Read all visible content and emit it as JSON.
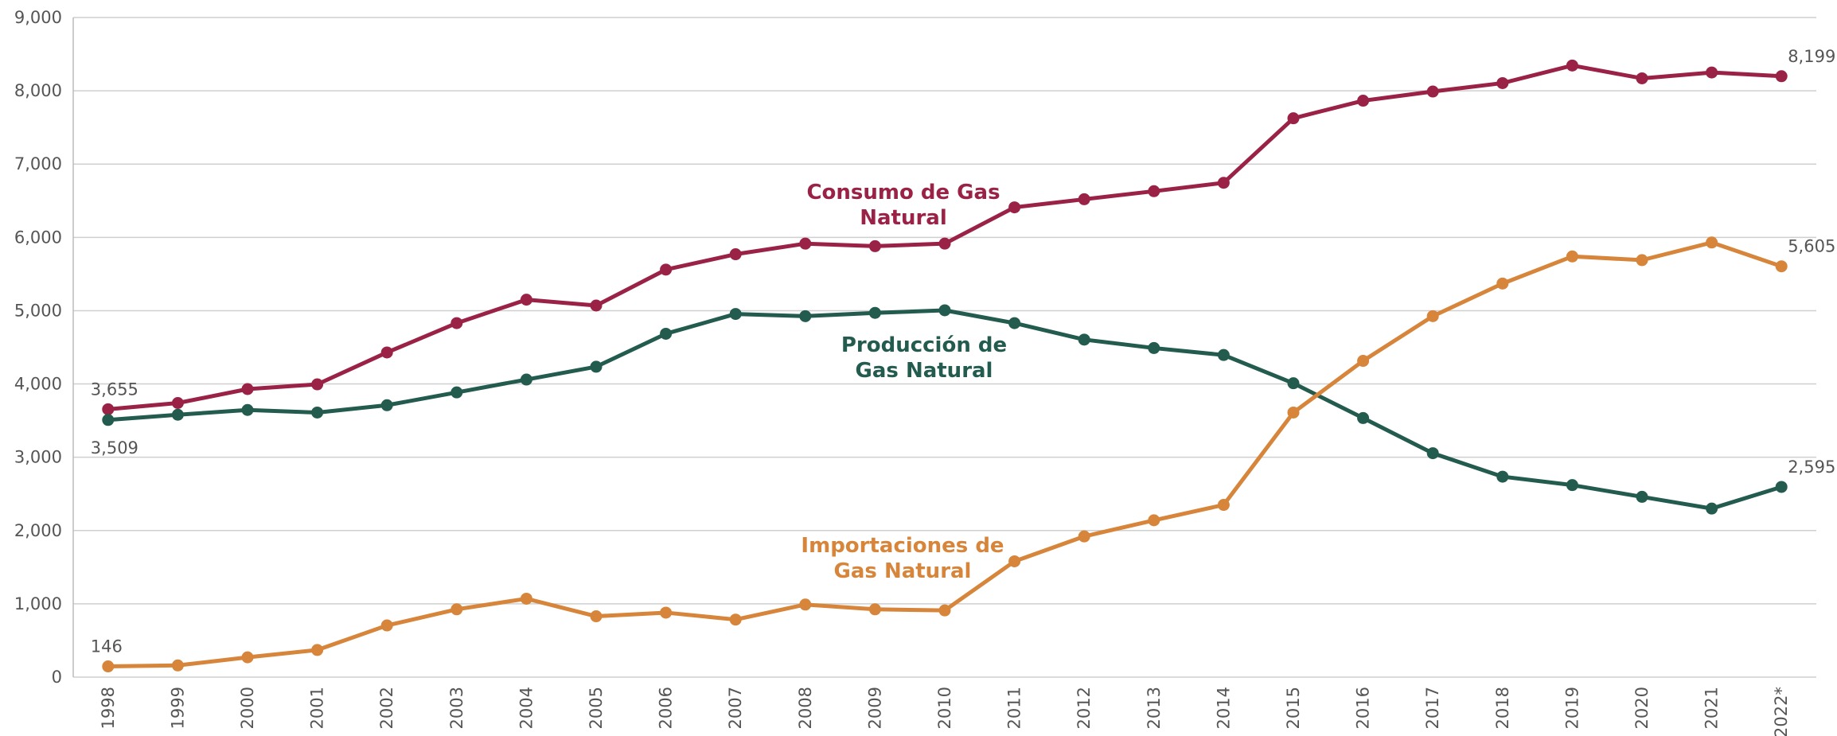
{
  "chart_data": {
    "type": "line",
    "categories": [
      "1998",
      "1999",
      "2000",
      "2001",
      "2002",
      "2003",
      "2004",
      "2005",
      "2006",
      "2007",
      "2008",
      "2009",
      "2010",
      "2011",
      "2012",
      "2013",
      "2014",
      "2015",
      "2016",
      "2017",
      "2018",
      "2019",
      "2020",
      "2021",
      "2022*"
    ],
    "ylim": [
      0,
      9000
    ],
    "yticks": [
      0,
      {
        "value": 1000,
        "label": "1,000"
      },
      {
        "value": 2000,
        "label": "2,000"
      },
      {
        "value": 3000,
        "label": "3,000"
      },
      {
        "value": 4000,
        "label": "4,000"
      },
      {
        "value": 5000,
        "label": "5,000"
      },
      {
        "value": 6000,
        "label": "6,000"
      },
      {
        "value": 7000,
        "label": "7,000"
      },
      {
        "value": 8000,
        "label": "8,000"
      },
      {
        "value": 9000,
        "label": "9,000"
      }
    ],
    "grid": true,
    "series": [
      {
        "name": "Consumo de Gas Natural",
        "color": "#9b2247",
        "values": [
          3655,
          3740,
          3930,
          3995,
          4430,
          4830,
          5150,
          5070,
          5560,
          5770,
          5915,
          5880,
          5915,
          6410,
          6520,
          6630,
          6745,
          7625,
          7865,
          7990,
          8105,
          8345,
          8170,
          8250,
          8199
        ],
        "value_labels": [
          "3,655",
          null,
          null,
          null,
          null,
          null,
          null,
          null,
          null,
          null,
          null,
          null,
          null,
          null,
          null,
          null,
          null,
          null,
          null,
          null,
          null,
          null,
          null,
          null,
          "8,199"
        ]
      },
      {
        "name": "Producción de Gas Natural",
        "color": "#235b4e",
        "values": [
          3509,
          3580,
          3645,
          3610,
          3710,
          3885,
          4060,
          4235,
          4685,
          4955,
          4925,
          4970,
          5005,
          4830,
          4605,
          4490,
          4395,
          4010,
          3535,
          3055,
          2735,
          2620,
          2460,
          2300,
          2595
        ],
        "value_labels": [
          "3,509",
          null,
          null,
          null,
          null,
          null,
          null,
          null,
          null,
          null,
          null,
          null,
          null,
          null,
          null,
          null,
          null,
          null,
          null,
          null,
          null,
          null,
          null,
          null,
          "2,595"
        ]
      },
      {
        "name": "Importaciones de Gas Natural",
        "color": "#d6853a",
        "values": [
          146,
          160,
          270,
          370,
          705,
          925,
          1070,
          830,
          880,
          785,
          990,
          925,
          910,
          1580,
          1920,
          2140,
          2350,
          3610,
          4315,
          4925,
          5370,
          5740,
          5690,
          5930,
          5605
        ],
        "value_labels": [
          "146",
          null,
          null,
          null,
          null,
          null,
          null,
          null,
          null,
          null,
          null,
          null,
          null,
          null,
          null,
          null,
          null,
          null,
          null,
          null,
          null,
          null,
          null,
          null,
          "5,605"
        ]
      }
    ]
  }
}
